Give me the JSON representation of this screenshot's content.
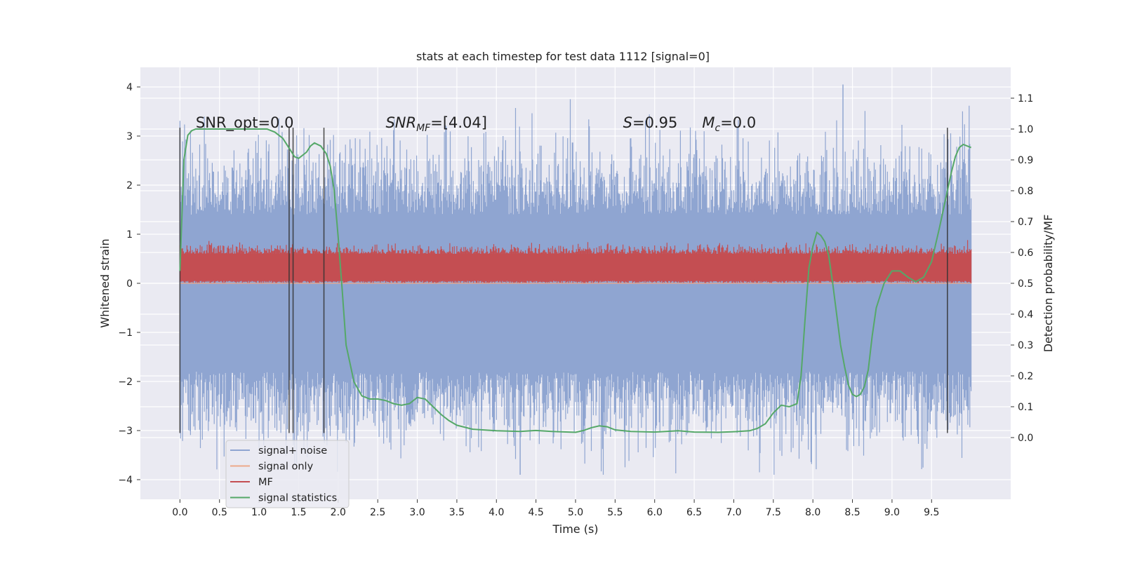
{
  "chart_data": {
    "type": "line",
    "title": "stats at each timestep for test data 1112 [signal=0]",
    "xlabel": "Time (s)",
    "ylabel": "Whitened strain",
    "ylabel_right": "Detection probability/MF",
    "xlim": [
      -0.5,
      10.5
    ],
    "ylim": [
      -4.4,
      4.4
    ],
    "ylim_right": [
      -0.2,
      1.2
    ],
    "x_ticks": [
      0.0,
      0.5,
      1.0,
      1.5,
      2.0,
      2.5,
      3.0,
      3.5,
      4.0,
      4.5,
      5.0,
      5.5,
      6.0,
      6.5,
      7.0,
      7.5,
      8.0,
      8.5,
      9.0,
      9.5
    ],
    "x_tick_labels": [
      "0.0",
      "0.5",
      "1.0",
      "1.5",
      "2.0",
      "2.5",
      "3.0",
      "3.5",
      "4.0",
      "4.5",
      "5.0",
      "5.5",
      "6.0",
      "6.5",
      "7.0",
      "7.5",
      "8.0",
      "8.5",
      "9.0",
      "9.5"
    ],
    "y_ticks": [
      -4,
      -3,
      -2,
      -1,
      0,
      1,
      2,
      3,
      4
    ],
    "y_tick_labels": [
      "−4",
      "−3",
      "−2",
      "−1",
      "0",
      "1",
      "2",
      "3",
      "4"
    ],
    "y_ticks_right": [
      0.0,
      0.1,
      0.2,
      0.3,
      0.4,
      0.5,
      0.6,
      0.7,
      0.8,
      0.9,
      1.0,
      1.1
    ],
    "y_tick_labels_right": [
      "0.0",
      "0.1",
      "0.2",
      "0.3",
      "0.4",
      "0.5",
      "0.6",
      "0.7",
      "0.8",
      "0.9",
      "1.0",
      "1.1"
    ],
    "grid": true,
    "legend_position": "lower-left",
    "colors": {
      "background": "#eaeaf2",
      "grid": "#ffffff",
      "signal_noise": "#8fa5d1",
      "signal_only": "#eda98a",
      "mf": "#c44e52",
      "signal_statistics": "#55a868",
      "vlines": "#333333"
    },
    "series": [
      {
        "name": "signal+ noise",
        "axis": "left",
        "style": "band",
        "x_range": [
          0.0,
          10.0
        ],
        "y_core_range": [
          -1.8,
          1.4
        ],
        "y_extreme_range": [
          -3.9,
          4.05
        ]
      },
      {
        "name": "signal only",
        "axis": "left",
        "style": "line",
        "x": [
          0.0,
          10.0
        ],
        "y": [
          0.0,
          0.0
        ]
      },
      {
        "name": "MF",
        "axis": "left",
        "style": "band",
        "x_range": [
          0.0,
          10.0
        ],
        "y_core_range": [
          0.05,
          0.6
        ],
        "y_extreme_range": [
          0.0,
          0.9
        ]
      },
      {
        "name": "signal statistics",
        "axis": "right",
        "style": "line",
        "x": [
          0.0,
          0.05,
          0.1,
          0.15,
          0.2,
          0.3,
          0.5,
          0.8,
          1.0,
          1.1,
          1.2,
          1.3,
          1.4,
          1.45,
          1.5,
          1.6,
          1.65,
          1.7,
          1.78,
          1.85,
          1.9,
          1.95,
          2.0,
          2.05,
          2.1,
          2.2,
          2.3,
          2.4,
          2.5,
          2.6,
          2.7,
          2.8,
          2.9,
          3.0,
          3.1,
          3.2,
          3.3,
          3.4,
          3.5,
          3.7,
          4.0,
          4.3,
          4.5,
          4.7,
          5.0,
          5.1,
          5.2,
          5.3,
          5.4,
          5.5,
          5.7,
          6.0,
          6.3,
          6.5,
          6.8,
          7.0,
          7.2,
          7.3,
          7.4,
          7.5,
          7.6,
          7.7,
          7.8,
          7.85,
          7.9,
          7.95,
          8.0,
          8.05,
          8.1,
          8.15,
          8.2,
          8.25,
          8.3,
          8.35,
          8.4,
          8.45,
          8.5,
          8.55,
          8.6,
          8.65,
          8.7,
          8.75,
          8.8,
          8.9,
          9.0,
          9.1,
          9.2,
          9.3,
          9.4,
          9.5,
          9.6,
          9.7,
          9.75,
          9.8,
          9.85,
          9.9,
          9.95,
          10.0
        ],
        "y": [
          0.54,
          0.9,
          0.98,
          0.995,
          1.0,
          1.0,
          1.0,
          1.0,
          1.0,
          1.0,
          0.99,
          0.97,
          0.93,
          0.91,
          0.905,
          0.925,
          0.945,
          0.955,
          0.945,
          0.92,
          0.88,
          0.8,
          0.65,
          0.48,
          0.3,
          0.18,
          0.135,
          0.125,
          0.125,
          0.12,
          0.11,
          0.105,
          0.11,
          0.13,
          0.125,
          0.1,
          0.075,
          0.055,
          0.04,
          0.027,
          0.022,
          0.02,
          0.023,
          0.02,
          0.017,
          0.023,
          0.032,
          0.038,
          0.035,
          0.025,
          0.02,
          0.018,
          0.022,
          0.018,
          0.017,
          0.019,
          0.022,
          0.03,
          0.045,
          0.08,
          0.105,
          0.1,
          0.11,
          0.2,
          0.38,
          0.55,
          0.62,
          0.665,
          0.655,
          0.635,
          0.59,
          0.5,
          0.4,
          0.3,
          0.23,
          0.17,
          0.14,
          0.133,
          0.14,
          0.165,
          0.22,
          0.33,
          0.42,
          0.5,
          0.54,
          0.54,
          0.52,
          0.505,
          0.52,
          0.57,
          0.68,
          0.8,
          0.86,
          0.91,
          0.94,
          0.95,
          0.945,
          0.94
        ]
      }
    ],
    "vlines": [
      0.0,
      1.38,
      1.43,
      1.82,
      9.7
    ],
    "vline_range": [
      -3.05,
      3.17
    ],
    "annotations": [
      {
        "text": "SNR_opt=0.0",
        "x": 0.2,
        "y": 3.17
      },
      {
        "sym": "SNR",
        "sub": "MF",
        "text": "=[4.04]",
        "x": 2.6,
        "y": 3.17
      },
      {
        "sym": "S",
        "text": "=0.95",
        "x": 5.6,
        "y": 3.17
      },
      {
        "sym": "M",
        "sub": "c",
        "text": "=0.0",
        "x": 6.6,
        "y": 3.17
      }
    ]
  }
}
